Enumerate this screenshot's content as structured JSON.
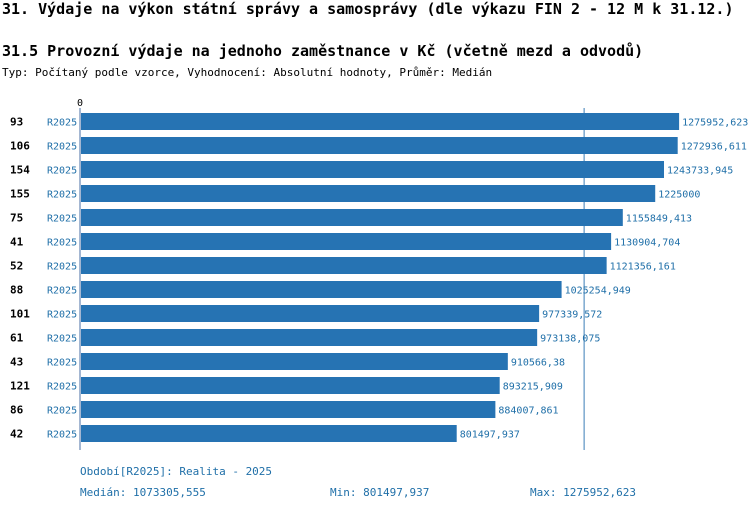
{
  "header": {
    "title": "31. Výdaje na výkon státní správy a samosprávy (dle výkazu FIN 2 - 12 M k 31.12.)",
    "chart_title": "31.5 Provozní výdaje na jednoho zaměstnance v Kč (včetně mezd a odvodů)",
    "subtitle": "Typ: Počítaný podle vzorce, Vyhodnocení: Absolutní hodnoty, Průměr: Medián"
  },
  "chart_data": {
    "type": "bar",
    "orientation": "horizontal",
    "axis_zero_label": "0",
    "xlim": [
      0,
      1280000
    ],
    "median": 1073305.555,
    "bar_color": "#2673b3",
    "label_color": "#1f6fa8",
    "categories": [
      "93",
      "106",
      "154",
      "155",
      "75",
      "41",
      "52",
      "88",
      "101",
      "61",
      "43",
      "121",
      "86",
      "42"
    ],
    "series_label": "R2025",
    "values": [
      1275952.623,
      1272936.611,
      1243733.945,
      1225000,
      1155849.413,
      1130904.704,
      1121356.161,
      1025254.949,
      977339.572,
      973138.075,
      910566.38,
      893215.909,
      884007.861,
      801497.937
    ],
    "value_labels": [
      "1275952,623",
      "1272936,611",
      "1243733,945",
      "1225000",
      "1155849,413",
      "1130904,704",
      "1121356,161",
      "1025254,949",
      "977339,572",
      "973138,075",
      "910566,38",
      "893215,909",
      "884007,861",
      "801497,937"
    ]
  },
  "footer": {
    "period": "Období[R2025]: Realita - 2025",
    "median": "Medián: 1073305,555",
    "min": "Min: 801497,937",
    "max": "Max: 1275952,623"
  }
}
